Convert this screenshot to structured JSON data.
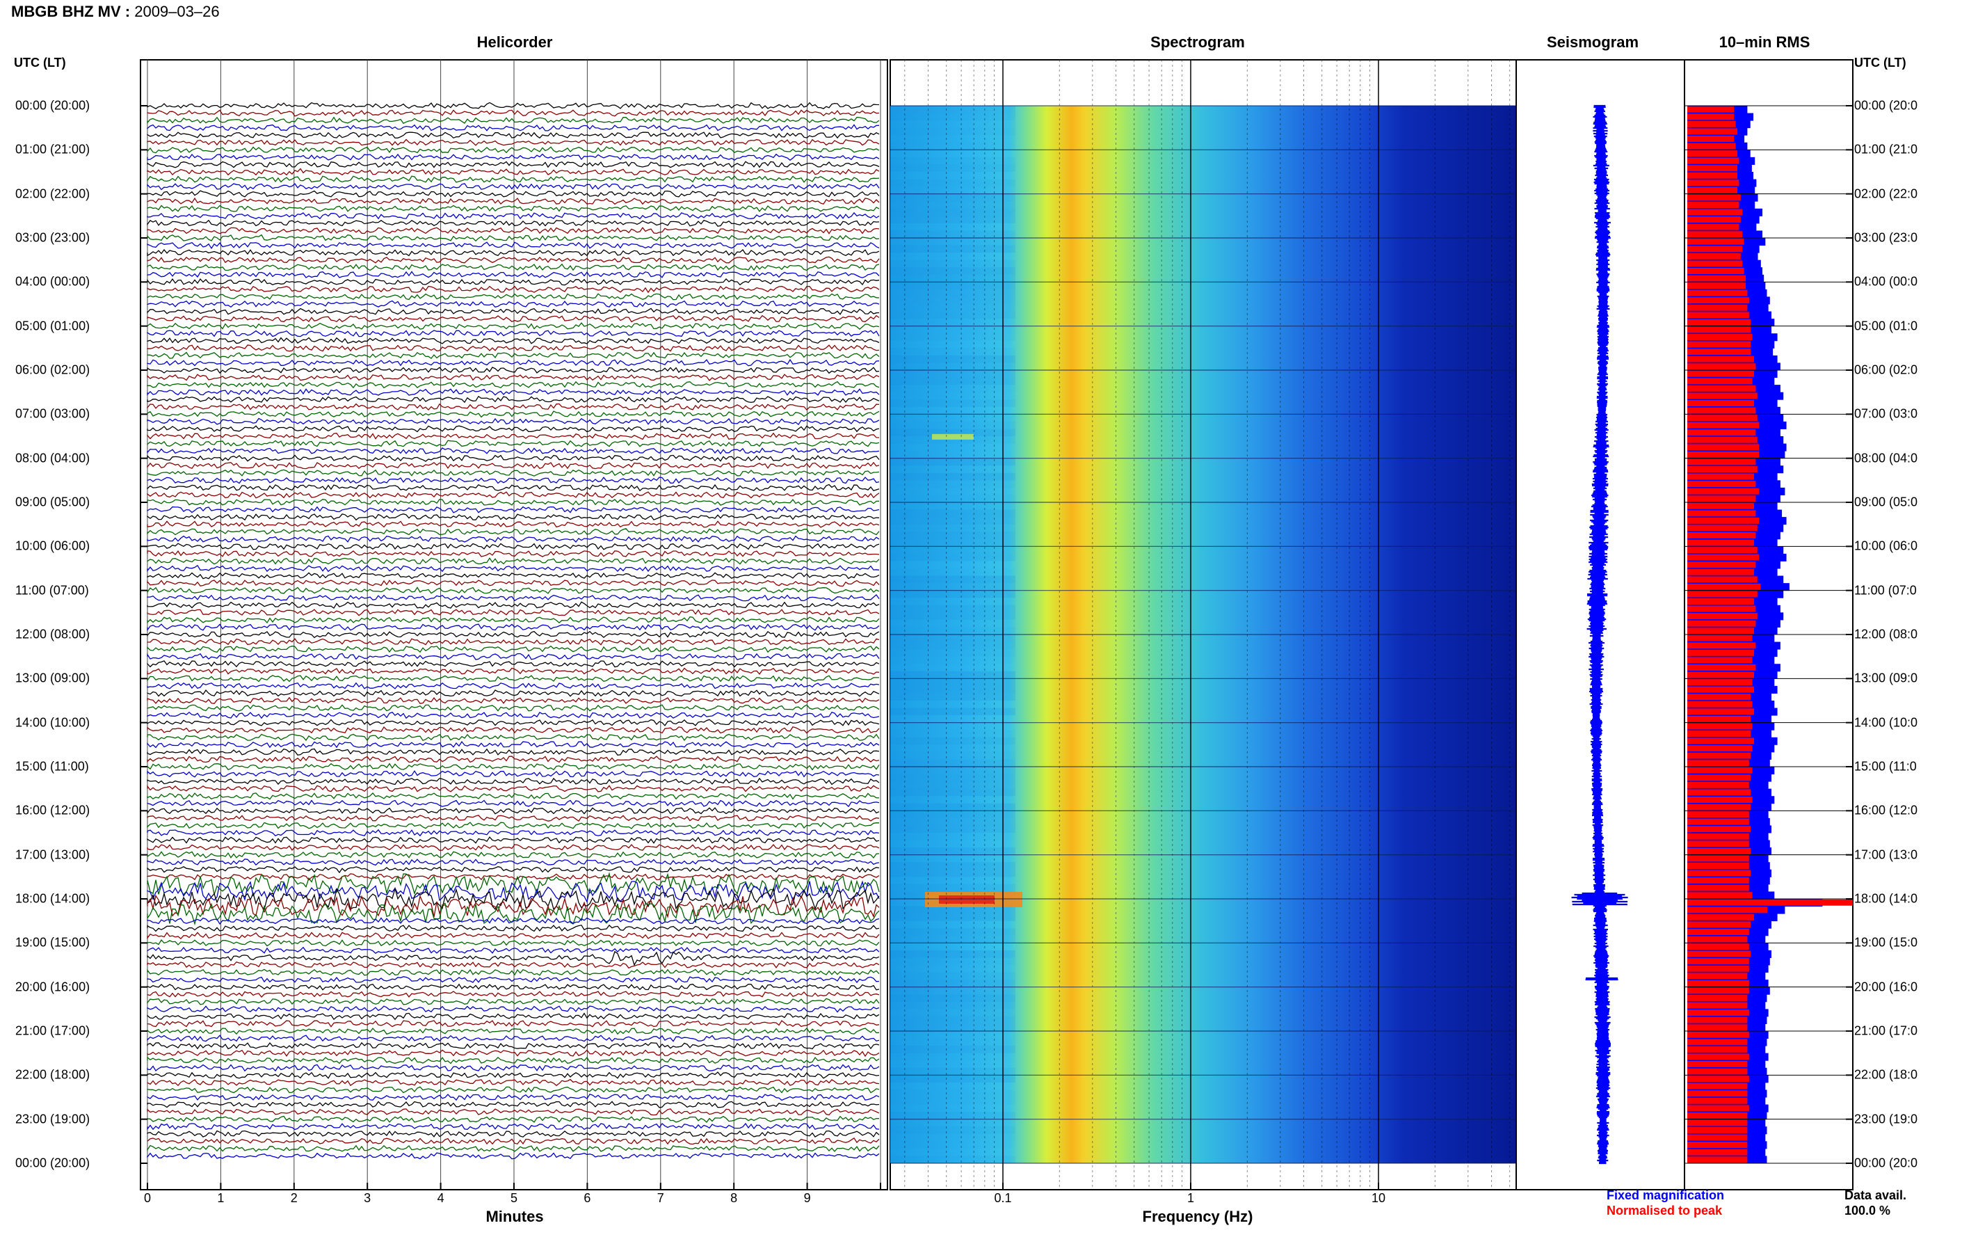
{
  "header": {
    "title": "MBGB BHZ MV :",
    "date": "2009–03–26"
  },
  "panels": {
    "helicorder": "Helicorder",
    "spectrogram": "Spectrogram",
    "seismogram": "Seismogram",
    "rms": "10–min RMS"
  },
  "time_axis_header": "UTC (LT)",
  "time_labels_left": [
    "00:00 (20:00)",
    "01:00 (21:00)",
    "02:00 (22:00)",
    "03:00 (23:00)",
    "04:00 (00:00)",
    "05:00 (01:00)",
    "06:00 (02:00)",
    "07:00 (03:00)",
    "08:00 (04:00)",
    "09:00 (05:00)",
    "10:00 (06:00)",
    "11:00 (07:00)",
    "12:00 (08:00)",
    "13:00 (09:00)",
    "14:00 (10:00)",
    "15:00 (11:00)",
    "16:00 (12:00)",
    "17:00 (13:00)",
    "18:00 (14:00)",
    "19:00 (15:00)",
    "20:00 (16:00)",
    "21:00 (17:00)",
    "22:00 (18:00)",
    "23:00 (19:00)",
    "00:00 (20:00)"
  ],
  "time_labels_right": [
    "00:00 (20:0",
    "01:00 (21:0",
    "02:00 (22:0",
    "03:00 (23:0",
    "04:00 (00:0",
    "05:00 (01:0",
    "06:00 (02:0",
    "07:00 (03:0",
    "08:00 (04:0",
    "09:00 (05:0",
    "10:00 (06:0",
    "11:00 (07:0",
    "12:00 (08:0",
    "13:00 (09:0",
    "14:00 (10:0",
    "15:00 (11:0",
    "16:00 (12:0",
    "17:00 (13:0",
    "18:00 (14:0",
    "19:00 (15:0",
    "20:00 (16:0",
    "21:00 (17:0",
    "22:00 (18:0",
    "23:00 (19:0",
    "00:00 (20:0"
  ],
  "helicorder_axis": {
    "label": "Minutes",
    "ticks": [
      "0",
      "1",
      "2",
      "3",
      "4",
      "5",
      "6",
      "7",
      "8",
      "9"
    ]
  },
  "spectrogram_axis": {
    "label": "Frequency (Hz)",
    "ticks": [
      "0.1",
      "1",
      "10"
    ],
    "scale": "log"
  },
  "legend": {
    "fixed": "Fixed magnification",
    "normalised": "Normalised to peak"
  },
  "availability": {
    "label": "Data avail.",
    "value": "100.0 %"
  },
  "colors": {
    "trace_cycle": [
      "#000000",
      "#8b0000",
      "#006400",
      "#0000cc"
    ],
    "fixed_mag": "#0000ff",
    "normalised": "#ff0000"
  },
  "chart_data": {
    "type": "heatmap",
    "time_range_utc": [
      "00:00",
      "24:00"
    ],
    "helicorder": {
      "rows_per_hour": 6,
      "minutes_per_row": 10,
      "notable_event_utc": "18:00",
      "secondary_event_utc": "19:20"
    },
    "spectrogram": {
      "freq_range_hz": [
        0.02,
        50
      ],
      "peak_band_hz": [
        0.2,
        0.35
      ],
      "event_low_freq_utc": "18:00"
    },
    "seismogram": {
      "event_utc": "18:00",
      "secondary_event_utc": "19:50"
    },
    "rms_10min": {
      "series": [
        {
          "name": "Fixed magnification",
          "values": [
            0.4,
            0.44,
            0.42,
            0.4,
            0.38,
            0.4,
            0.42,
            0.45,
            0.43,
            0.44,
            0.46,
            0.45,
            0.47,
            0.45,
            0.5,
            0.48,
            0.46,
            0.5,
            0.52,
            0.48,
            0.47,
            0.49,
            0.5,
            0.51,
            0.52,
            0.53,
            0.55,
            0.54,
            0.56,
            0.58,
            0.56,
            0.6,
            0.58,
            0.57,
            0.6,
            0.62,
            0.6,
            0.58,
            0.62,
            0.64,
            0.6,
            0.62,
            0.64,
            0.66,
            0.62,
            0.64,
            0.66,
            0.65,
            0.62,
            0.64,
            0.6,
            0.62,
            0.65,
            0.62,
            0.6,
            0.63,
            0.66,
            0.64,
            0.62,
            0.6,
            0.64,
            0.66,
            0.62,
            0.6,
            0.64,
            0.68,
            0.64,
            0.6,
            0.62,
            0.64,
            0.62,
            0.6,
            0.58,
            0.62,
            0.6,
            0.58,
            0.62,
            0.6,
            0.58,
            0.6,
            0.56,
            0.58,
            0.6,
            0.56,
            0.58,
            0.56,
            0.6,
            0.58,
            0.56,
            0.55,
            0.58,
            0.56,
            0.54,
            0.56,
            0.58,
            0.56,
            0.54,
            0.55,
            0.56,
            0.54,
            0.55,
            0.56,
            0.54,
            0.55,
            0.56,
            0.55,
            0.54,
            0.58,
            0.9,
            0.65,
            0.6,
            0.56,
            0.54,
            0.52,
            0.54,
            0.56,
            0.55,
            0.54,
            0.52,
            0.54,
            0.55,
            0.53,
            0.52,
            0.54,
            0.53,
            0.52,
            0.54,
            0.53,
            0.52,
            0.54,
            0.52,
            0.53,
            0.54,
            0.52,
            0.53,
            0.52,
            0.54,
            0.53,
            0.52,
            0.53,
            0.52,
            0.53,
            0.52,
            0.53
          ]
        },
        {
          "name": "Normalised to peak",
          "values": [
            0.28,
            0.28,
            0.29,
            0.3,
            0.28,
            0.29,
            0.3,
            0.31,
            0.3,
            0.3,
            0.31,
            0.3,
            0.32,
            0.31,
            0.33,
            0.32,
            0.31,
            0.33,
            0.34,
            0.33,
            0.32,
            0.33,
            0.34,
            0.35,
            0.35,
            0.36,
            0.37,
            0.36,
            0.37,
            0.38,
            0.38,
            0.39,
            0.38,
            0.38,
            0.4,
            0.41,
            0.4,
            0.39,
            0.41,
            0.42,
            0.4,
            0.41,
            0.42,
            0.43,
            0.41,
            0.42,
            0.43,
            0.43,
            0.41,
            0.42,
            0.4,
            0.41,
            0.43,
            0.41,
            0.4,
            0.41,
            0.43,
            0.42,
            0.41,
            0.4,
            0.42,
            0.43,
            0.41,
            0.4,
            0.42,
            0.44,
            0.42,
            0.4,
            0.41,
            0.42,
            0.41,
            0.4,
            0.39,
            0.41,
            0.4,
            0.39,
            0.41,
            0.4,
            0.39,
            0.4,
            0.38,
            0.39,
            0.4,
            0.38,
            0.39,
            0.38,
            0.4,
            0.39,
            0.38,
            0.37,
            0.39,
            0.38,
            0.37,
            0.38,
            0.39,
            0.38,
            0.37,
            0.37,
            0.38,
            0.37,
            0.37,
            0.38,
            0.37,
            0.37,
            0.38,
            0.37,
            0.37,
            0.39,
            1.0,
            0.48,
            0.4,
            0.38,
            0.37,
            0.36,
            0.37,
            0.38,
            0.37,
            0.37,
            0.36,
            0.37,
            0.37,
            0.36,
            0.36,
            0.37,
            0.36,
            0.36,
            0.37,
            0.36,
            0.36,
            0.37,
            0.36,
            0.36,
            0.37,
            0.36,
            0.36,
            0.36,
            0.37,
            0.36,
            0.36,
            0.36,
            0.36,
            0.36,
            0.36,
            0.36
          ]
        }
      ]
    }
  }
}
